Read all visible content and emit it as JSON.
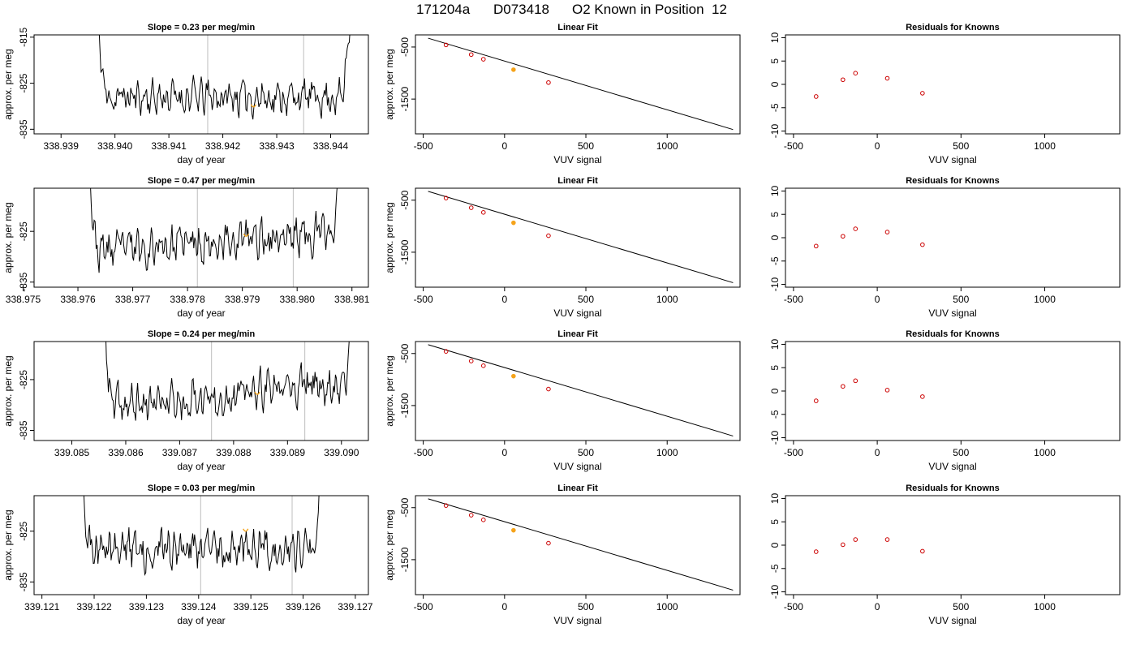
{
  "figure": {
    "run_id": "171204a",
    "sample_id": "D073418",
    "description": "O2 Known in Position",
    "position": "12"
  },
  "colors": {
    "trace": "#000000",
    "vertical_marker": "#c8c8c8",
    "highlight": "#f5a31a",
    "residual_point": "#cc0000",
    "frame": "#000000"
  },
  "chart_data": [
    {
      "type": "line",
      "panel": "timeseries",
      "row": 0,
      "title": "Slope =  0.23  per meg/min",
      "xlabel": "day of year",
      "ylabel": "approx. per meg",
      "xlim": [
        338.9385,
        338.9447
      ],
      "ylim": [
        -836,
        -814.5
      ],
      "xticks": [
        338.939,
        338.94,
        338.941,
        338.942,
        338.943,
        338.944
      ],
      "xtick_labels": [
        "338.939",
        "338.940",
        "338.941",
        "338.942",
        "338.943",
        "338.944"
      ],
      "yticks": [
        -835,
        -825,
        -815
      ],
      "ytick_labels": [
        "-835",
        "-825",
        "-815"
      ],
      "vlines": [
        338.94172,
        338.9435
      ],
      "highlight_x": 338.94257,
      "trace": {
        "x_start": 338.93963,
        "x_end": 338.9444,
        "n": 260,
        "base": -828.0,
        "end_slope": 0.0,
        "left_spike": 338.93985,
        "right_spike": 338.9442,
        "seed": 11
      }
    },
    {
      "type": "line",
      "panel": "timeseries",
      "row": 1,
      "title": "Slope =  0.47  per meg/min",
      "xlabel": "day of year",
      "ylabel": "approx. per meg",
      "xlim": [
        338.9752,
        338.9813
      ],
      "ylim": [
        -836,
        -816.5
      ],
      "xticks": [
        338.975,
        338.976,
        338.977,
        338.978,
        338.979,
        338.98,
        338.981
      ],
      "xtick_labels": [
        "338.975",
        "338.976",
        "338.977",
        "338.978",
        "338.979",
        "338.980",
        "338.981"
      ],
      "yticks": [
        -835,
        -825
      ],
      "ytick_labels": [
        "-835",
        "-825"
      ],
      "vlines": [
        338.97818,
        338.97993
      ],
      "highlight_x": 338.97907,
      "trace": {
        "x_start": 338.97617,
        "x_end": 338.98083,
        "n": 260,
        "base": -829.0,
        "end_slope": 4.0,
        "left_spike": 338.97635,
        "right_spike": 338.98065,
        "seed": 23
      }
    },
    {
      "type": "line",
      "panel": "timeseries",
      "row": 2,
      "title": "Slope =  0.24  per meg/min",
      "xlabel": "day of year",
      "ylabel": "approx. per meg",
      "xlim": [
        339.0843,
        339.0905
      ],
      "ylim": [
        -837,
        -817.5
      ],
      "xticks": [
        339.085,
        339.086,
        339.087,
        339.088,
        339.089,
        339.09
      ],
      "xtick_labels": [
        "339.085",
        "339.086",
        "339.087",
        "339.088",
        "339.089",
        "339.090"
      ],
      "yticks": [
        -835,
        -825
      ],
      "ytick_labels": [
        "-835",
        "-825"
      ],
      "vlines": [
        339.08759,
        339.08932
      ],
      "highlight_x": 339.08844,
      "trace": {
        "x_start": 339.08557,
        "x_end": 339.09025,
        "n": 260,
        "base": -830.5,
        "end_slope": 5.0,
        "left_spike": 339.08575,
        "right_spike": 339.09005,
        "seed": 37
      }
    },
    {
      "type": "line",
      "panel": "timeseries",
      "row": 3,
      "title": "Slope =  0.03  per meg/min",
      "xlabel": "day of year",
      "ylabel": "approx. per meg",
      "xlim": [
        339.12085,
        339.12725
      ],
      "ylim": [
        -837.5,
        -818
      ],
      "xticks": [
        339.121,
        339.122,
        339.123,
        339.124,
        339.125,
        339.126,
        339.127
      ],
      "xtick_labels": [
        "339.121",
        "339.122",
        "339.123",
        "339.124",
        "339.125",
        "339.126",
        "339.127"
      ],
      "yticks": [
        -835,
        -825
      ],
      "ytick_labels": [
        "-835",
        "-825"
      ],
      "vlines": [
        339.12404,
        339.12579
      ],
      "highlight_x": 339.1249,
      "trace": {
        "x_start": 339.12175,
        "x_end": 339.1264,
        "n": 260,
        "base": -828.5,
        "end_slope": 0.3,
        "left_spike": 339.1219,
        "right_spike": 339.1262,
        "seed": 51
      }
    },
    {
      "type": "scatter",
      "panel": "linearfit",
      "row": 0,
      "title": "Linear Fit",
      "xlabel": "VUV signal",
      "ylabel": "approx. per meg",
      "xlim": [
        -548,
        1448
      ],
      "ylim": [
        -2168,
        -267
      ],
      "xticks": [
        -500,
        0,
        500,
        1000
      ],
      "xtick_labels": [
        "-500",
        "0",
        "500",
        "1000"
      ],
      "yticks": [
        -1500,
        -500
      ],
      "ytick_labels": [
        "-1500",
        "-500"
      ],
      "points": [
        {
          "x": -360,
          "y": -460,
          "highlight": false
        },
        {
          "x": -205,
          "y": -645,
          "highlight": false
        },
        {
          "x": -130,
          "y": -735,
          "highlight": false
        },
        {
          "x": 55,
          "y": -935,
          "highlight": true
        },
        {
          "x": 270,
          "y": -1183,
          "highlight": false
        }
      ],
      "fit_line": {
        "x": [
          -470,
          1405
        ],
        "y": [
          -330,
          -2085
        ]
      }
    },
    {
      "type": "scatter",
      "panel": "linearfit",
      "row": 1,
      "title": "Linear Fit",
      "xlabel": "VUV signal",
      "ylabel": "approx. per meg",
      "xlim": [
        -548,
        1448
      ],
      "ylim": [
        -2172,
        -270
      ],
      "xticks": [
        -500,
        0,
        500,
        1000
      ],
      "xtick_labels": [
        "-500",
        "0",
        "500",
        "1000"
      ],
      "yticks": [
        -1500,
        -500
      ],
      "ytick_labels": [
        "-1500",
        "-500"
      ],
      "points": [
        {
          "x": -360,
          "y": -460,
          "highlight": false
        },
        {
          "x": -205,
          "y": -645,
          "highlight": false
        },
        {
          "x": -130,
          "y": -735,
          "highlight": false
        },
        {
          "x": 55,
          "y": -935,
          "highlight": true
        },
        {
          "x": 270,
          "y": -1183,
          "highlight": false
        }
      ],
      "fit_line": {
        "x": [
          -470,
          1405
        ],
        "y": [
          -330,
          -2085
        ]
      }
    },
    {
      "type": "scatter",
      "panel": "linearfit",
      "row": 2,
      "title": "Linear Fit",
      "xlabel": "VUV signal",
      "ylabel": "approx. per meg",
      "xlim": [
        -548,
        1448
      ],
      "ylim": [
        -2172,
        -270
      ],
      "xticks": [
        -500,
        0,
        500,
        1000
      ],
      "xtick_labels": [
        "-500",
        "0",
        "500",
        "1000"
      ],
      "yticks": [
        -1500,
        -500
      ],
      "ytick_labels": [
        "-1500",
        "-500"
      ],
      "points": [
        {
          "x": -360,
          "y": -460,
          "highlight": false
        },
        {
          "x": -205,
          "y": -645,
          "highlight": false
        },
        {
          "x": -130,
          "y": -735,
          "highlight": false
        },
        {
          "x": 55,
          "y": -935,
          "highlight": true
        },
        {
          "x": 270,
          "y": -1183,
          "highlight": false
        }
      ],
      "fit_line": {
        "x": [
          -470,
          1405
        ],
        "y": [
          -330,
          -2085
        ]
      }
    },
    {
      "type": "scatter",
      "panel": "linearfit",
      "row": 3,
      "title": "Linear Fit",
      "xlabel": "VUV signal",
      "ylabel": "approx. per meg",
      "xlim": [
        -548,
        1448
      ],
      "ylim": [
        -2172,
        -270
      ],
      "xticks": [
        -500,
        0,
        500,
        1000
      ],
      "xtick_labels": [
        "-500",
        "0",
        "500",
        "1000"
      ],
      "yticks": [
        -1500,
        -500
      ],
      "ytick_labels": [
        "-1500",
        "-500"
      ],
      "points": [
        {
          "x": -360,
          "y": -460,
          "highlight": false
        },
        {
          "x": -205,
          "y": -645,
          "highlight": false
        },
        {
          "x": -130,
          "y": -735,
          "highlight": false
        },
        {
          "x": 55,
          "y": -935,
          "highlight": true
        },
        {
          "x": 270,
          "y": -1183,
          "highlight": false
        }
      ],
      "fit_line": {
        "x": [
          -470,
          1405
        ],
        "y": [
          -330,
          -2085
        ]
      }
    },
    {
      "type": "scatter",
      "panel": "residuals",
      "row": 0,
      "title": "Residuals for Knowns",
      "xlabel": "VUV signal",
      "ylabel": "",
      "xlim": [
        -548,
        1448
      ],
      "ylim": [
        -10.6,
        10.6
      ],
      "xticks": [
        -500,
        0,
        500,
        1000
      ],
      "xtick_labels": [
        "-500",
        "0",
        "500",
        "1000"
      ],
      "yticks": [
        -10,
        -5,
        0,
        5,
        10
      ],
      "ytick_labels": [
        "-10",
        "-5",
        "0",
        "5",
        "10"
      ],
      "points": [
        {
          "x": -365,
          "y": -2.6
        },
        {
          "x": -205,
          "y": 1.0
        },
        {
          "x": -130,
          "y": 2.4
        },
        {
          "x": 60,
          "y": 1.3
        },
        {
          "x": 270,
          "y": -1.9
        }
      ]
    },
    {
      "type": "scatter",
      "panel": "residuals",
      "row": 1,
      "title": "Residuals for Knowns",
      "xlabel": "VUV signal",
      "ylabel": "",
      "xlim": [
        -548,
        1448
      ],
      "ylim": [
        -10.6,
        10.6
      ],
      "xticks": [
        -500,
        0,
        500,
        1000
      ],
      "xtick_labels": [
        "-500",
        "0",
        "500",
        "1000"
      ],
      "yticks": [
        -10,
        -5,
        0,
        5,
        10
      ],
      "ytick_labels": [
        "-10",
        "-5",
        "0",
        "5",
        "10"
      ],
      "points": [
        {
          "x": -365,
          "y": -1.8
        },
        {
          "x": -205,
          "y": 0.3
        },
        {
          "x": -130,
          "y": 1.9
        },
        {
          "x": 60,
          "y": 1.2
        },
        {
          "x": 270,
          "y": -1.5
        }
      ]
    },
    {
      "type": "scatter",
      "panel": "residuals",
      "row": 2,
      "title": "Residuals for Knowns",
      "xlabel": "VUV signal",
      "ylabel": "",
      "xlim": [
        -548,
        1448
      ],
      "ylim": [
        -10.6,
        10.6
      ],
      "xticks": [
        -500,
        0,
        500,
        1000
      ],
      "xtick_labels": [
        "-500",
        "0",
        "500",
        "1000"
      ],
      "yticks": [
        -10,
        -5,
        0,
        5,
        10
      ],
      "ytick_labels": [
        "-10",
        "-5",
        "0",
        "5",
        "10"
      ],
      "points": [
        {
          "x": -365,
          "y": -2.1
        },
        {
          "x": -205,
          "y": 1.0
        },
        {
          "x": -130,
          "y": 2.2
        },
        {
          "x": 60,
          "y": 0.2
        },
        {
          "x": 270,
          "y": -1.2
        }
      ]
    },
    {
      "type": "scatter",
      "panel": "residuals",
      "row": 3,
      "title": "Residuals for Knowns",
      "xlabel": "VUV signal",
      "ylabel": "",
      "xlim": [
        -548,
        1448
      ],
      "ylim": [
        -10.6,
        10.6
      ],
      "xticks": [
        -500,
        0,
        500,
        1000
      ],
      "xtick_labels": [
        "-500",
        "0",
        "500",
        "1000"
      ],
      "yticks": [
        -10,
        -5,
        0,
        5,
        10
      ],
      "ytick_labels": [
        "-10",
        "-5",
        "0",
        "5",
        "10"
      ],
      "points": [
        {
          "x": -365,
          "y": -1.4
        },
        {
          "x": -205,
          "y": 0.1
        },
        {
          "x": -130,
          "y": 1.2
        },
        {
          "x": 60,
          "y": 1.2
        },
        {
          "x": 270,
          "y": -1.3
        }
      ]
    }
  ]
}
